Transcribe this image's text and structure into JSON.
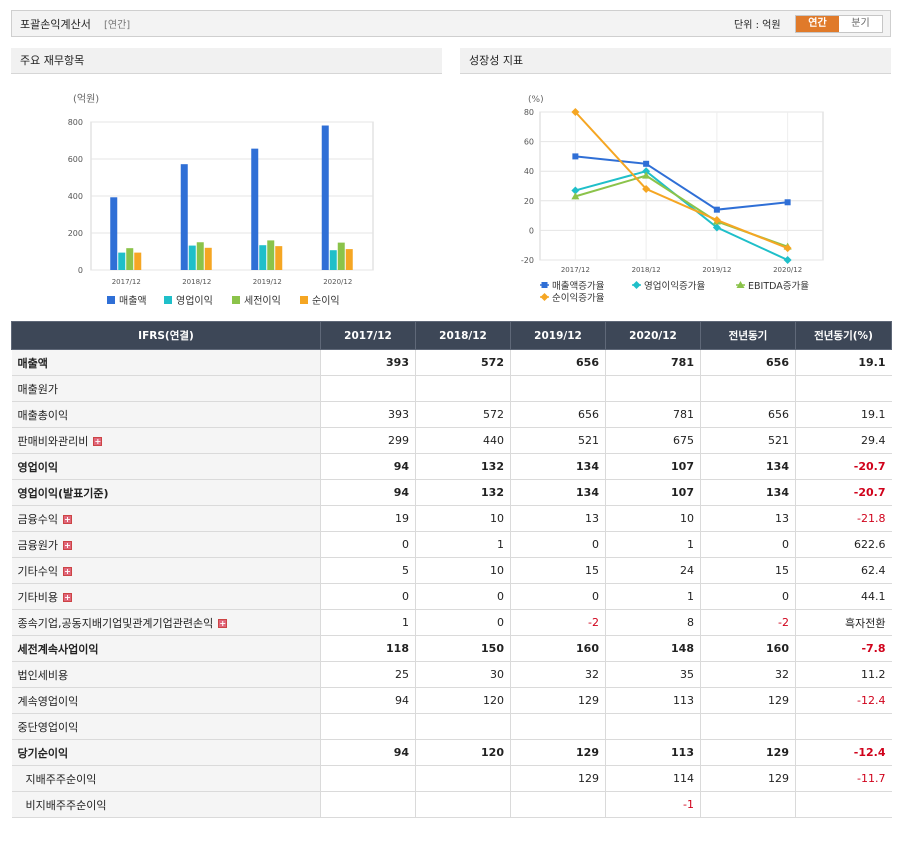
{
  "header": {
    "title": "포괄손익계산서",
    "subtitle": "[연간]",
    "unit_label": "단위 : 억원",
    "toggle_annual": "연간",
    "toggle_quarter": "분기"
  },
  "left_panel": {
    "title": "주요 재무항목"
  },
  "right_panel": {
    "title": "성장성 지표"
  },
  "chart_data": [
    {
      "type": "bar",
      "unit_label": "(억원)",
      "categories": [
        "2017/12",
        "2018/12",
        "2019/12",
        "2020/12"
      ],
      "ylim": [
        0,
        800
      ],
      "yticks": [
        0,
        200,
        400,
        600,
        800
      ],
      "grid": true,
      "legend_position": "bottom",
      "series": [
        {
          "name": "매출액",
          "color": "#2f6fd6",
          "values": [
            393,
            572,
            656,
            781
          ]
        },
        {
          "name": "영업이익",
          "color": "#1fbfc9",
          "values": [
            94,
            132,
            134,
            107
          ]
        },
        {
          "name": "세전이익",
          "color": "#8bc34a",
          "values": [
            118,
            150,
            160,
            148
          ]
        },
        {
          "name": "순이익",
          "color": "#f5a623",
          "values": [
            94,
            120,
            129,
            113
          ]
        }
      ]
    },
    {
      "type": "line",
      "unit_label": "(%)",
      "categories": [
        "2017/12",
        "2018/12",
        "2019/12",
        "2020/12"
      ],
      "ylim": [
        -20,
        80
      ],
      "yticks": [
        -20,
        0,
        20,
        40,
        60,
        80
      ],
      "grid": true,
      "legend_position": "bottom",
      "series": [
        {
          "name": "매출액증가율",
          "color": "#2f6fd6",
          "marker": "square",
          "values": [
            50,
            45,
            14,
            19
          ]
        },
        {
          "name": "영업이익증가율",
          "color": "#1fbfc9",
          "marker": "diamond",
          "values": [
            27,
            40,
            2,
            -20
          ]
        },
        {
          "name": "EBITDA증가율",
          "color": "#8bc34a",
          "marker": "triangle",
          "values": [
            23,
            37,
            6,
            -11
          ]
        },
        {
          "name": "순이익증가율",
          "color": "#f5a623",
          "marker": "diamond",
          "values": [
            80,
            28,
            7,
            -12
          ]
        }
      ]
    }
  ],
  "table": {
    "columns": [
      "IFRS(연결)",
      "2017/12",
      "2018/12",
      "2019/12",
      "2020/12",
      "전년동기",
      "전년동기(%)"
    ],
    "rows": [
      {
        "label": "매출액",
        "bold": true,
        "values": [
          "393",
          "572",
          "656",
          "781",
          "656",
          "19.1"
        ]
      },
      {
        "label": "매출원가",
        "values": [
          "",
          "",
          "",
          "",
          "",
          ""
        ]
      },
      {
        "label": "매출총이익",
        "values": [
          "393",
          "572",
          "656",
          "781",
          "656",
          "19.1"
        ]
      },
      {
        "label": "판매비와관리비",
        "expand": true,
        "values": [
          "299",
          "440",
          "521",
          "675",
          "521",
          "29.4"
        ]
      },
      {
        "label": "영업이익",
        "bold": true,
        "values": [
          "94",
          "132",
          "134",
          "107",
          "134",
          "-20.7"
        ]
      },
      {
        "label": "영업이익(발표기준)",
        "bold": true,
        "values": [
          "94",
          "132",
          "134",
          "107",
          "134",
          "-20.7"
        ]
      },
      {
        "label": "금융수익",
        "expand": true,
        "values": [
          "19",
          "10",
          "13",
          "10",
          "13",
          "-21.8"
        ]
      },
      {
        "label": "금융원가",
        "expand": true,
        "values": [
          "0",
          "1",
          "0",
          "1",
          "0",
          "622.6"
        ]
      },
      {
        "label": "기타수익",
        "expand": true,
        "values": [
          "5",
          "10",
          "15",
          "24",
          "15",
          "62.4"
        ]
      },
      {
        "label": "기타비용",
        "expand": true,
        "values": [
          "0",
          "0",
          "0",
          "1",
          "0",
          "44.1"
        ]
      },
      {
        "label": "종속기업,공동지배기업및관계기업관련손익",
        "expand": true,
        "values": [
          "1",
          "0",
          "-2",
          "8",
          "-2",
          "흑자전환"
        ]
      },
      {
        "label": "세전계속사업이익",
        "bold": true,
        "values": [
          "118",
          "150",
          "160",
          "148",
          "160",
          "-7.8"
        ]
      },
      {
        "label": "법인세비용",
        "values": [
          "25",
          "30",
          "32",
          "35",
          "32",
          "11.2"
        ]
      },
      {
        "label": "계속영업이익",
        "values": [
          "94",
          "120",
          "129",
          "113",
          "129",
          "-12.4"
        ]
      },
      {
        "label": "중단영업이익",
        "values": [
          "",
          "",
          "",
          "",
          "",
          ""
        ]
      },
      {
        "label": "당기순이익",
        "bold": true,
        "values": [
          "94",
          "120",
          "129",
          "113",
          "129",
          "-12.4"
        ]
      },
      {
        "label": "지배주주순이익",
        "indent": true,
        "values": [
          "",
          "",
          "129",
          "114",
          "129",
          "-11.7"
        ]
      },
      {
        "label": "비지배주주순이익",
        "indent": true,
        "values": [
          "",
          "",
          "",
          "-1",
          "",
          ""
        ]
      }
    ]
  }
}
